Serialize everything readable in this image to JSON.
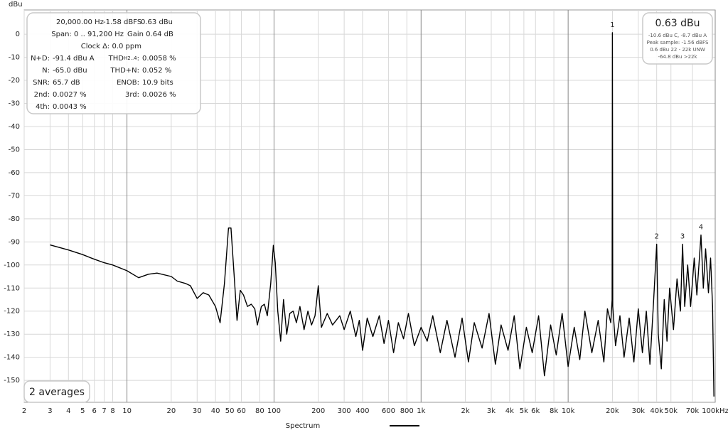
{
  "chart_data": {
    "type": "line",
    "y_label": "dBu",
    "x_scale": "log",
    "grid": true,
    "xlim": [
      2,
      100000
    ],
    "ylim": [
      -159.5,
      10.5
    ],
    "xticks": [
      2,
      3,
      4,
      5,
      6,
      7,
      8,
      10,
      20,
      30,
      40,
      50,
      60,
      80,
      100,
      200,
      300,
      400,
      600,
      800,
      {
        "value": 1000,
        "label": "1k"
      },
      {
        "value": 2000,
        "label": "2k"
      },
      {
        "value": 3000,
        "label": "3k"
      },
      {
        "value": 4000,
        "label": "4k"
      },
      {
        "value": 5000,
        "label": "5k"
      },
      {
        "value": 6000,
        "label": "6k"
      },
      {
        "value": 8000,
        "label": "8k"
      },
      {
        "value": 10000,
        "label": "10k"
      },
      {
        "value": 20000,
        "label": "20k"
      },
      {
        "value": 30000,
        "label": "30k"
      },
      {
        "value": 40000,
        "label": "40k"
      },
      {
        "value": 50000,
        "label": "50k"
      },
      {
        "value": 70000,
        "label": "70k"
      },
      {
        "value": 100000,
        "label": "100kHz"
      }
    ],
    "yticks": [
      0,
      -10,
      -20,
      -30,
      -40,
      -50,
      -60,
      -70,
      -80,
      -90,
      -100,
      -110,
      -120,
      -130,
      -140,
      -150
    ],
    "x": [
      3,
      4,
      5,
      6,
      7,
      8,
      10,
      12,
      14,
      16,
      20,
      22,
      25,
      27,
      30,
      33,
      36,
      40,
      43,
      46,
      49,
      51,
      54,
      56,
      59,
      62,
      66,
      70,
      74,
      77,
      82,
      86,
      90,
      95,
      99,
      102,
      106,
      111,
      116,
      122,
      128,
      135,
      142,
      150,
      160,
      170,
      180,
      190,
      200,
      210,
      230,
      250,
      280,
      300,
      330,
      360,
      380,
      400,
      430,
      470,
      520,
      560,
      600,
      650,
      700,
      760,
      820,
      900,
      1000,
      1100,
      1200,
      1350,
      1500,
      1700,
      1900,
      2100,
      2300,
      2600,
      2900,
      3200,
      3500,
      3900,
      4300,
      4700,
      5200,
      5700,
      6300,
      6900,
      7600,
      8300,
      9100,
      10000,
      11000,
      12000,
      13000,
      14500,
      16000,
      17500,
      18500,
      19500,
      19900,
      20000,
      20100,
      21000,
      22500,
      24000,
      26000,
      28000,
      30000,
      32000,
      34000,
      36000,
      38000,
      40000,
      41000,
      43000,
      45000,
      47000,
      49000,
      52000,
      55000,
      58000,
      60000,
      62000,
      65000,
      68000,
      72000,
      75000,
      80000,
      83000,
      86000,
      90000,
      93000,
      96000,
      98000
    ],
    "series": [
      {
        "name": "Spectrum",
        "color": "#000000",
        "values": [
          -91.3,
          -93.5,
          -95.5,
          -97.5,
          -99,
          -100,
          -102.5,
          -105.5,
          -104,
          -103.5,
          -105,
          -107,
          -108,
          -109,
          -114.5,
          -112,
          -113,
          -118,
          -125,
          -108,
          -84,
          -84,
          -108,
          -124,
          -111,
          -113,
          -118,
          -117,
          -119,
          -126,
          -118,
          -117,
          -122,
          -108,
          -91.5,
          -99,
          -120,
          -133,
          -115,
          -130,
          -121,
          -120,
          -125,
          -118,
          -128,
          -120,
          -126,
          -122,
          -109,
          -127,
          -121,
          -126,
          -122,
          -128,
          -120,
          -131,
          -124,
          -137,
          -123,
          -131,
          -122,
          -134,
          -124,
          -138,
          -125,
          -132,
          -121,
          -135,
          -127,
          -133,
          -122,
          -138,
          -124,
          -140,
          -123,
          -142,
          -125,
          -136,
          -121,
          -143,
          -126,
          -137,
          -122,
          -145,
          -127,
          -138,
          -122,
          -148,
          -126,
          -139,
          -121,
          -144,
          -127,
          -141,
          -120,
          -138,
          -124,
          -142,
          -119,
          -125,
          -115,
          0.63,
          -118,
          -135,
          -122,
          -140,
          -123,
          -142,
          -119,
          -138,
          -120,
          -143,
          -117,
          -91,
          -130,
          -145,
          -115,
          -133,
          -110,
          -128,
          -106,
          -120,
          -91,
          -118,
          -100,
          -118,
          -97,
          -113,
          -87,
          -110,
          -93,
          -112,
          -97,
          -118,
          -157
        ]
      }
    ],
    "annotations": [
      {
        "text": "1",
        "x": 20000,
        "y": 0.63
      },
      {
        "text": "2",
        "x": 40000,
        "y": -91
      },
      {
        "text": "3",
        "x": 60000,
        "y": -91
      },
      {
        "text": "4",
        "x": 80000,
        "y": -87
      }
    ]
  },
  "info_box": {
    "header": [
      "20,000.00 Hz",
      "-1.58 dBFS",
      "0.63 dBu"
    ],
    "span": [
      "Span: 0 .. 91,200 Hz",
      "Gain 0.64 dB"
    ],
    "clock": "Clock Δ: 0.0 ppm",
    "left": [
      [
        "N+D:",
        "-91.4 dBu A"
      ],
      [
        "N:",
        "-65.0 dBu"
      ],
      [
        "SNR:",
        "65.7 dB"
      ],
      [
        "2nd:",
        "0.0027 %"
      ],
      [
        "4th:",
        "0.0043 %"
      ]
    ],
    "right": [
      [
        "THD",
        "H2..4",
        ":",
        "0.0058 %"
      ],
      [
        "THD+N:",
        "0.052 %"
      ],
      [
        "ENOB:",
        "10.9 bits"
      ],
      [
        "3rd:",
        "0.0026 %"
      ]
    ]
  },
  "level_box": {
    "value": "0.63 dBu",
    "lines": [
      "-10.6 dBu C, -8.7 dBu A",
      "Peak sample: -1.56 dBFS",
      "0.6 dBu 22 - 22k UNW",
      "-64.8 dBu >22k"
    ]
  },
  "averages": "2 averages"
}
